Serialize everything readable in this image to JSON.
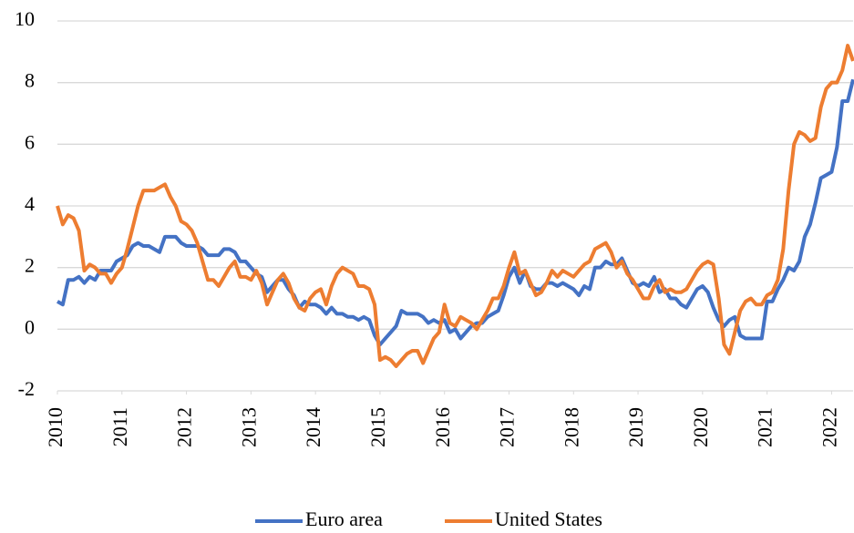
{
  "chart_data": {
    "type": "line",
    "x": [
      2010,
      2010.083,
      2010.167,
      2010.25,
      2010.333,
      2010.417,
      2010.5,
      2010.583,
      2010.667,
      2010.75,
      2010.833,
      2010.917,
      2011,
      2011.083,
      2011.167,
      2011.25,
      2011.333,
      2011.417,
      2011.5,
      2011.583,
      2011.667,
      2011.75,
      2011.833,
      2011.917,
      2012,
      2012.083,
      2012.167,
      2012.25,
      2012.333,
      2012.417,
      2012.5,
      2012.583,
      2012.667,
      2012.75,
      2012.833,
      2012.917,
      2013,
      2013.083,
      2013.167,
      2013.25,
      2013.333,
      2013.417,
      2013.5,
      2013.583,
      2013.667,
      2013.75,
      2013.833,
      2013.917,
      2014,
      2014.083,
      2014.167,
      2014.25,
      2014.333,
      2014.417,
      2014.5,
      2014.583,
      2014.667,
      2014.75,
      2014.833,
      2014.917,
      2015,
      2015.083,
      2015.167,
      2015.25,
      2015.333,
      2015.417,
      2015.5,
      2015.583,
      2015.667,
      2015.75,
      2015.833,
      2015.917,
      2016,
      2016.083,
      2016.167,
      2016.25,
      2016.333,
      2016.417,
      2016.5,
      2016.583,
      2016.667,
      2016.75,
      2016.833,
      2016.917,
      2017,
      2017.083,
      2017.167,
      2017.25,
      2017.333,
      2017.417,
      2017.5,
      2017.583,
      2017.667,
      2017.75,
      2017.833,
      2017.917,
      2018,
      2018.083,
      2018.167,
      2018.25,
      2018.333,
      2018.417,
      2018.5,
      2018.583,
      2018.667,
      2018.75,
      2018.833,
      2018.917,
      2019,
      2019.083,
      2019.167,
      2019.25,
      2019.333,
      2019.417,
      2019.5,
      2019.583,
      2019.667,
      2019.75,
      2019.833,
      2019.917,
      2020,
      2020.083,
      2020.167,
      2020.25,
      2020.333,
      2020.417,
      2020.5,
      2020.583,
      2020.667,
      2020.75,
      2020.833,
      2020.917,
      2021,
      2021.083,
      2021.167,
      2021.25,
      2021.333,
      2021.417,
      2021.5,
      2021.583,
      2021.667,
      2021.75,
      2021.833,
      2021.917,
      2022,
      2022.083,
      2022.167,
      2022.25,
      2022.333
    ],
    "series": [
      {
        "name": "Euro area",
        "color": "#4472c4",
        "values": [
          0.9,
          0.8,
          1.6,
          1.6,
          1.7,
          1.5,
          1.7,
          1.6,
          1.9,
          1.9,
          1.9,
          2.2,
          2.3,
          2.4,
          2.7,
          2.8,
          2.7,
          2.7,
          2.6,
          2.5,
          3.0,
          3.0,
          3.0,
          2.8,
          2.7,
          2.7,
          2.7,
          2.6,
          2.4,
          2.4,
          2.4,
          2.6,
          2.6,
          2.5,
          2.2,
          2.2,
          2.0,
          1.8,
          1.7,
          1.2,
          1.4,
          1.6,
          1.6,
          1.3,
          1.1,
          0.7,
          0.9,
          0.8,
          0.8,
          0.7,
          0.5,
          0.7,
          0.5,
          0.5,
          0.4,
          0.4,
          0.3,
          0.4,
          0.3,
          -0.2,
          -0.5,
          -0.3,
          -0.1,
          0.1,
          0.6,
          0.5,
          0.5,
          0.5,
          0.4,
          0.2,
          0.3,
          0.2,
          0.3,
          -0.1,
          0.0,
          -0.3,
          -0.1,
          0.1,
          0.2,
          0.2,
          0.4,
          0.5,
          0.6,
          1.1,
          1.7,
          2.0,
          1.5,
          1.9,
          1.4,
          1.3,
          1.3,
          1.5,
          1.5,
          1.4,
          1.5,
          1.4,
          1.3,
          1.1,
          1.4,
          1.3,
          2.0,
          2.0,
          2.2,
          2.1,
          2.1,
          2.3,
          1.9,
          1.5,
          1.4,
          1.5,
          1.4,
          1.7,
          1.2,
          1.3,
          1.0,
          1.0,
          0.8,
          0.7,
          1.0,
          1.3,
          1.4,
          1.2,
          0.7,
          0.3,
          0.1,
          0.3,
          0.4,
          -0.2,
          -0.3,
          -0.3,
          -0.3,
          -0.3,
          0.9,
          0.9,
          1.3,
          1.6,
          2.0,
          1.9,
          2.2,
          3.0,
          3.4,
          4.1,
          4.9,
          5.0,
          5.1,
          5.9,
          7.4,
          7.4,
          8.1
        ]
      },
      {
        "name": "United States",
        "color": "#ed7d31",
        "values": [
          4.0,
          3.4,
          3.7,
          3.6,
          3.2,
          1.9,
          2.1,
          2.0,
          1.8,
          1.8,
          1.5,
          1.8,
          2.0,
          2.6,
          3.3,
          4.0,
          4.5,
          4.5,
          4.5,
          4.6,
          4.7,
          4.3,
          4.0,
          3.5,
          3.4,
          3.2,
          2.8,
          2.2,
          1.6,
          1.6,
          1.4,
          1.7,
          2.0,
          2.2,
          1.7,
          1.7,
          1.6,
          1.9,
          1.5,
          0.8,
          1.2,
          1.6,
          1.8,
          1.5,
          1.0,
          0.7,
          0.6,
          1.0,
          1.2,
          1.3,
          0.8,
          1.4,
          1.8,
          2.0,
          1.9,
          1.8,
          1.4,
          1.4,
          1.3,
          0.8,
          -1.0,
          -0.9,
          -1.0,
          -1.2,
          -1.0,
          -0.8,
          -0.7,
          -0.7,
          -1.1,
          -0.7,
          -0.3,
          -0.1,
          0.8,
          0.2,
          0.1,
          0.4,
          0.3,
          0.2,
          0.0,
          0.3,
          0.6,
          1.0,
          1.0,
          1.4,
          2.0,
          2.5,
          1.8,
          1.9,
          1.5,
          1.1,
          1.2,
          1.5,
          1.9,
          1.7,
          1.9,
          1.8,
          1.7,
          1.9,
          2.1,
          2.2,
          2.6,
          2.7,
          2.8,
          2.5,
          2.0,
          2.2,
          1.8,
          1.6,
          1.3,
          1.0,
          1.0,
          1.4,
          1.6,
          1.2,
          1.3,
          1.2,
          1.2,
          1.3,
          1.6,
          1.9,
          2.1,
          2.2,
          2.1,
          1.0,
          -0.5,
          -0.8,
          -0.1,
          0.6,
          0.9,
          1.0,
          0.8,
          0.8,
          1.1,
          1.2,
          1.6,
          2.6,
          4.5,
          6.0,
          6.4,
          6.3,
          6.1,
          6.2,
          7.2,
          7.8,
          8.0,
          8.0,
          8.4,
          9.2,
          8.7
        ]
      }
    ],
    "xlim": [
      2010,
      2022.333
    ],
    "xticks": [
      2010,
      2011,
      2012,
      2013,
      2014,
      2015,
      2016,
      2017,
      2018,
      2019,
      2020,
      2021,
      2022
    ],
    "ylim": [
      -2,
      10
    ],
    "yticks": [
      -2,
      0,
      2,
      4,
      6,
      8,
      10
    ],
    "grid": true,
    "legend": "bottom"
  }
}
